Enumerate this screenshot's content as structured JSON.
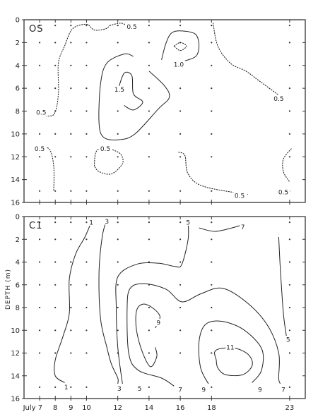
{
  "chart_data": [
    {
      "type": "contour",
      "panel_label": "OS",
      "xlabel": "",
      "ylabel": "",
      "x_tick_labels": [],
      "y_ticks": [
        0,
        2,
        4,
        6,
        8,
        10,
        12,
        14,
        16
      ],
      "y_tick_labels": [
        "0",
        "2",
        "4",
        "6",
        "8",
        "10",
        "12",
        "14",
        "16"
      ],
      "xlim": [
        6,
        24
      ],
      "ylim": [
        16,
        0
      ],
      "sample_x": [
        7,
        8,
        9,
        10,
        12,
        14,
        16,
        18,
        23
      ],
      "sample_depths": [
        0.5,
        2,
        4,
        6,
        8,
        10,
        12,
        15
      ],
      "contours": [
        {
          "level": "0.5",
          "style": "dotted",
          "points": [
            [
              7.1,
              8.3
            ],
            [
              7.9,
              8.3
            ],
            [
              8.2,
              6.5
            ],
            [
              8.2,
              3.8
            ],
            [
              8.6,
              2.3
            ],
            [
              9.1,
              0.8
            ],
            [
              10.0,
              0.4
            ],
            [
              10.5,
              0.9
            ],
            [
              11.2,
              0.8
            ],
            [
              11.5,
              0.5
            ]
          ]
        },
        {
          "level": "0.5",
          "style": "dotted",
          "points": [
            [
              11.5,
              0.5
            ],
            [
              12.2,
              0.3
            ],
            [
              12.7,
              0.6
            ]
          ]
        },
        {
          "level": "0.5",
          "style": "dotted",
          "points": [
            [
              18.1,
              0.3
            ],
            [
              18.4,
              2.3
            ],
            [
              19.2,
              3.8
            ],
            [
              20.2,
              4.5
            ],
            [
              21.0,
              5.3
            ],
            [
              22.3,
              6.6
            ]
          ]
        },
        {
          "level": "0.5",
          "style": "dotted",
          "points": [
            [
              6.9,
              11.3
            ],
            [
              7.6,
              11.3
            ],
            [
              7.9,
              12.8
            ],
            [
              7.9,
              15.0
            ]
          ]
        },
        {
          "level": "0.5",
          "style": "dotted",
          "points": [
            [
              10.5,
              12.8
            ],
            [
              10.6,
              11.6
            ],
            [
              11.1,
              11.1
            ],
            [
              11.7,
              11.4
            ],
            [
              12.2,
              11.8
            ],
            [
              12.3,
              12.6
            ],
            [
              11.6,
              13.5
            ],
            [
              10.8,
              13.3
            ],
            [
              10.5,
              12.8
            ]
          ]
        },
        {
          "level": "0.5",
          "style": "dotted",
          "points": [
            [
              15.9,
              11.6
            ],
            [
              16.3,
              11.9
            ],
            [
              16.5,
              13.5
            ],
            [
              17.5,
              14.6
            ],
            [
              20.3,
              15.3
            ]
          ]
        },
        {
          "level": "0.5",
          "style": "dotted",
          "points": [
            [
              23.1,
              11.3
            ],
            [
              22.6,
              12.2
            ],
            [
              22.6,
              13.3
            ],
            [
              23.0,
              14.2
            ]
          ]
        },
        {
          "level": "1.0",
          "style": "solid",
          "points": [
            [
              13.0,
              3.2
            ],
            [
              12.4,
              3.0
            ],
            [
              11.3,
              3.8
            ],
            [
              10.9,
              5.6
            ],
            [
              10.8,
              9.0
            ],
            [
              11.1,
              10.3
            ],
            [
              12.1,
              10.5
            ],
            [
              13.1,
              10.0
            ],
            [
              14.6,
              7.8
            ],
            [
              15.3,
              6.8
            ],
            [
              15.0,
              5.8
            ],
            [
              14.0,
              4.5
            ]
          ]
        },
        {
          "level": "1.0",
          "style": "solid",
          "points": [
            [
              14.8,
              3.5
            ],
            [
              15.1,
              2.0
            ],
            [
              15.5,
              1.1
            ],
            [
              16.3,
              1.0
            ],
            [
              17.0,
              1.3
            ],
            [
              17.2,
              2.3
            ],
            [
              17.0,
              3.2
            ],
            [
              16.3,
              3.6
            ]
          ]
        },
        {
          "level": "1.5",
          "style": "solid",
          "points": [
            [
              12.0,
              6.2
            ],
            [
              12.4,
              4.7
            ],
            [
              12.9,
              4.9
            ],
            [
              13.0,
              6.5
            ],
            [
              13.6,
              7.2
            ],
            [
              13.0,
              7.9
            ],
            [
              12.4,
              7.5
            ]
          ]
        },
        {
          "level": "",
          "style": "dotted",
          "points": [
            [
              15.6,
              2.3
            ],
            [
              16.0,
              2.0
            ],
            [
              16.4,
              2.3
            ],
            [
              16.0,
              2.7
            ],
            [
              15.6,
              2.3
            ]
          ]
        }
      ],
      "labels": [
        {
          "text": "0.5",
          "x": 7.1,
          "y": 8.1
        },
        {
          "text": "0.5",
          "x": 12.9,
          "y": 0.6
        },
        {
          "text": "0.5",
          "x": 22.3,
          "y": 6.9
        },
        {
          "text": "0.5",
          "x": 7.0,
          "y": 11.3
        },
        {
          "text": "0.5",
          "x": 11.2,
          "y": 11.3
        },
        {
          "text": "0.5",
          "x": 19.8,
          "y": 15.4
        },
        {
          "text": "0.5",
          "x": 22.6,
          "y": 15.1
        },
        {
          "text": "1.0",
          "x": 15.9,
          "y": 3.9
        },
        {
          "text": "1.5",
          "x": 12.1,
          "y": 6.1
        }
      ]
    },
    {
      "type": "contour",
      "panel_label": "C1",
      "xlabel": "",
      "ylabel": "DEPTH (m)",
      "x_tick_labels": [
        {
          "x": 7,
          "label": "July 7"
        },
        {
          "x": 8,
          "label": "8"
        },
        {
          "x": 9,
          "label": "9"
        },
        {
          "x": 10,
          "label": "10"
        },
        {
          "x": 12,
          "label": "12"
        },
        {
          "x": 14,
          "label": "14"
        },
        {
          "x": 16,
          "label": "16"
        },
        {
          "x": 18,
          "label": "18"
        },
        {
          "x": 23,
          "label": "23"
        }
      ],
      "y_ticks": [
        0,
        2,
        4,
        6,
        8,
        10,
        12,
        14,
        16
      ],
      "y_tick_labels": [
        "0",
        "2",
        "4",
        "6",
        "8",
        "10",
        "12",
        "14",
        "16"
      ],
      "xlim": [
        6,
        24
      ],
      "ylim": [
        16,
        0
      ],
      "sample_x": [
        7,
        8,
        9,
        10,
        12,
        14,
        16,
        18,
        23
      ],
      "sample_depths": [
        0.5,
        2,
        4,
        6,
        8,
        10,
        12,
        15
      ],
      "contours": [
        {
          "level": "1",
          "style": "solid",
          "points": [
            [
              10.3,
              0.5
            ],
            [
              9.9,
              1.8
            ],
            [
              9.3,
              3.3
            ],
            [
              8.9,
              5.5
            ],
            [
              8.9,
              8.5
            ],
            [
              8.5,
              10.5
            ],
            [
              8.0,
              12.6
            ],
            [
              8.0,
              14.0
            ],
            [
              8.6,
              14.6
            ]
          ]
        },
        {
          "level": "3",
          "style": "solid",
          "points": [
            [
              11.3,
              0.2
            ],
            [
              11.0,
              1.8
            ],
            [
              10.8,
              5.0
            ],
            [
              10.9,
              9.0
            ],
            [
              11.3,
              11.5
            ],
            [
              11.6,
              13.0
            ],
            [
              12.0,
              14.2
            ],
            [
              12.0,
              14.7
            ]
          ]
        },
        {
          "level": "5",
          "style": "solid",
          "points": [
            [
              12.3,
              14.7
            ],
            [
              12.0,
              11.5
            ],
            [
              11.9,
              8.0
            ],
            [
              12.0,
              5.3
            ],
            [
              13.2,
              4.2
            ],
            [
              14.6,
              4.1
            ],
            [
              15.7,
              4.4
            ],
            [
              16.1,
              4.2
            ],
            [
              16.5,
              2.0
            ],
            [
              16.5,
              0.4
            ]
          ]
        },
        {
          "level": "5",
          "style": "solid",
          "points": [
            [
              22.3,
              1.8
            ],
            [
              22.4,
              4.5
            ],
            [
              22.6,
              8.5
            ],
            [
              22.8,
              10.6
            ]
          ]
        },
        {
          "level": "7",
          "style": "solid",
          "points": [
            [
              15.6,
              14.9
            ],
            [
              14.8,
              14.2
            ],
            [
              13.3,
              13.5
            ],
            [
              12.7,
              12.0
            ],
            [
              12.6,
              8.0
            ],
            [
              12.8,
              6.3
            ],
            [
              13.7,
              5.9
            ],
            [
              15.1,
              6.4
            ],
            [
              16.1,
              7.5
            ],
            [
              17.3,
              6.8
            ],
            [
              18.7,
              6.3
            ],
            [
              20.3,
              7.6
            ],
            [
              21.6,
              9.6
            ],
            [
              22.3,
              12.0
            ],
            [
              22.3,
              14.2
            ],
            [
              22.4,
              14.7
            ]
          ]
        },
        {
          "level": "7",
          "style": "solid",
          "points": [
            [
              17.2,
              1.0
            ],
            [
              18.2,
              1.3
            ],
            [
              19.3,
              1.0
            ],
            [
              19.8,
              0.8
            ]
          ]
        },
        {
          "level": "9",
          "style": "solid",
          "points": [
            [
              14.4,
              9.8
            ],
            [
              14.7,
              8.8
            ],
            [
              14.2,
              8.0
            ],
            [
              13.6,
              7.7
            ],
            [
              13.2,
              8.3
            ],
            [
              13.2,
              10.0
            ],
            [
              13.6,
              12.0
            ],
            [
              14.1,
              13.2
            ],
            [
              14.5,
              12.3
            ],
            [
              14.4,
              11.5
            ]
          ]
        },
        {
          "level": "9",
          "style": "solid",
          "points": [
            [
              17.8,
              14.7
            ],
            [
              17.3,
              13.3
            ],
            [
              17.2,
              11.0
            ],
            [
              17.6,
              9.5
            ],
            [
              18.6,
              9.2
            ],
            [
              20.0,
              9.9
            ],
            [
              21.2,
              11.6
            ],
            [
              21.2,
              13.5
            ],
            [
              20.6,
              14.6
            ]
          ]
        },
        {
          "level": "11",
          "style": "solid",
          "points": [
            [
              18.3,
              12.6
            ],
            [
              18.2,
              11.9
            ],
            [
              18.6,
              11.6
            ],
            [
              19.6,
              11.6
            ],
            [
              20.4,
              12.2
            ],
            [
              20.6,
              13.1
            ],
            [
              20.0,
              13.9
            ],
            [
              18.9,
              13.9
            ],
            [
              18.4,
              13.3
            ],
            [
              18.3,
              12.6
            ]
          ]
        }
      ],
      "labels": [
        {
          "text": "1",
          "x": 10.3,
          "y": 0.5
        },
        {
          "text": "3",
          "x": 11.3,
          "y": 0.4
        },
        {
          "text": "5",
          "x": 16.5,
          "y": 0.5
        },
        {
          "text": "7",
          "x": 20.0,
          "y": 0.9
        },
        {
          "text": "9",
          "x": 14.6,
          "y": 9.3
        },
        {
          "text": "11",
          "x": 19.2,
          "y": 11.5
        },
        {
          "text": "5",
          "x": 22.9,
          "y": 10.8
        },
        {
          "text": "1",
          "x": 8.7,
          "y": 15.0
        },
        {
          "text": "3",
          "x": 12.1,
          "y": 15.1
        },
        {
          "text": "5",
          "x": 13.4,
          "y": 15.1
        },
        {
          "text": "7",
          "x": 16.0,
          "y": 15.2
        },
        {
          "text": "9",
          "x": 17.5,
          "y": 15.2
        },
        {
          "text": "9",
          "x": 21.1,
          "y": 15.2
        },
        {
          "text": "7",
          "x": 22.6,
          "y": 15.2
        }
      ]
    }
  ]
}
